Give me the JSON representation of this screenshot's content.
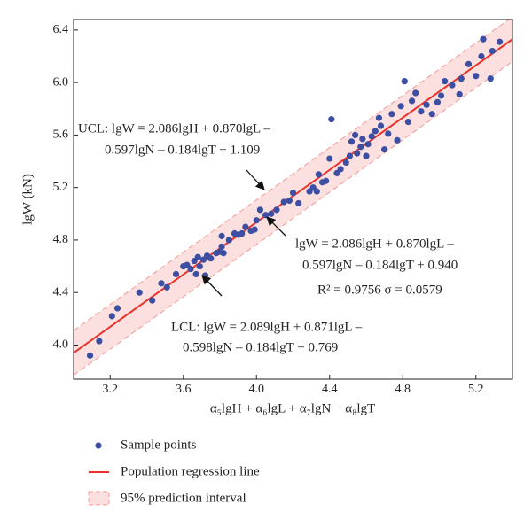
{
  "chart_data": {
    "type": "scatter",
    "x_label": "α₅lgH + α₆lgL + α₇lgN − α₈lgT",
    "y_label": "lgW (kN)",
    "xlim": [
      3.0,
      5.4
    ],
    "ylim": [
      3.74,
      6.48
    ],
    "xticks": [
      3.2,
      3.6,
      {
        "value": 4,
        "label": "4.0"
      },
      4.4,
      4.8,
      5.2
    ],
    "yticks": [
      {
        "value": 4,
        "label": "4.0"
      },
      4.4,
      4.8,
      5.2,
      5.6,
      {
        "value": 6,
        "label": "6.0"
      },
      6.4
    ],
    "series": [
      {
        "name": "95% prediction interval",
        "type": "band",
        "color": "#e8312a",
        "x": [
          3.0,
          5.4
        ],
        "upper": [
          4.11,
          6.5
        ],
        "lower": [
          3.77,
          6.16
        ]
      },
      {
        "name": "Population regression line",
        "type": "line",
        "color": "#e8312a",
        "x": [
          3.0,
          5.4
        ],
        "values": [
          3.94,
          6.33
        ]
      },
      {
        "name": "Sample points",
        "type": "scatter",
        "color": "#3c4fa3",
        "x": [
          3.09,
          3.14,
          3.21,
          3.24,
          3.36,
          3.43,
          3.48,
          3.51,
          3.56,
          3.6,
          3.62,
          3.64,
          3.66,
          3.67,
          3.68,
          3.69,
          3.71,
          3.72,
          3.73,
          3.75,
          3.78,
          3.8,
          3.81,
          3.82,
          3.81,
          3.85,
          3.88,
          3.9,
          3.92,
          3.94,
          3.97,
          3.99,
          4.0,
          4.02,
          4.05,
          4.08,
          4.11,
          4.15,
          4.18,
          4.2,
          4.23,
          4.29,
          4.31,
          4.33,
          4.34,
          4.36,
          4.38,
          4.4,
          4.41,
          4.44,
          4.46,
          4.49,
          4.51,
          4.52,
          4.54,
          4.55,
          4.57,
          4.58,
          4.6,
          4.61,
          4.63,
          4.65,
          4.67,
          4.68,
          4.7,
          4.72,
          4.74,
          4.77,
          4.79,
          4.81,
          4.83,
          4.85,
          4.87,
          4.9,
          4.93,
          4.96,
          4.99,
          5.01,
          5.03,
          5.07,
          5.11,
          5.12,
          5.16,
          5.2,
          5.23,
          5.24,
          5.28,
          5.29,
          5.33
        ],
        "values": [
          3.92,
          4.03,
          4.22,
          4.28,
          4.4,
          4.34,
          4.47,
          4.44,
          4.54,
          4.6,
          4.61,
          4.58,
          4.64,
          4.54,
          4.67,
          4.6,
          4.65,
          4.53,
          4.68,
          4.66,
          4.7,
          4.71,
          4.75,
          4.7,
          4.83,
          4.8,
          4.85,
          4.84,
          4.85,
          4.9,
          4.87,
          4.88,
          4.95,
          5.03,
          4.99,
          5.0,
          5.03,
          5.09,
          5.1,
          5.16,
          5.08,
          5.17,
          5.2,
          5.17,
          5.3,
          5.24,
          5.25,
          5.42,
          5.72,
          5.31,
          5.34,
          5.39,
          5.44,
          5.55,
          5.6,
          5.46,
          5.51,
          5.57,
          5.44,
          5.53,
          5.59,
          5.63,
          5.73,
          5.67,
          5.49,
          5.61,
          5.76,
          5.56,
          5.82,
          6.01,
          5.7,
          5.86,
          5.92,
          5.78,
          5.83,
          5.76,
          5.85,
          5.9,
          6.01,
          5.98,
          5.91,
          6.03,
          6.14,
          6.05,
          6.2,
          6.33,
          6.03,
          6.24,
          6.31
        ]
      }
    ],
    "annotations": [
      {
        "lines": [
          "UCL: lgW = 2.086lgH + 0.870lgL –",
          "0.597lgN – 0.184lgT + 1.109"
        ]
      },
      {
        "lines": [
          "lgW = 2.086lgH + 0.870lgL –",
          "0.597lgN – 0.184lgT + 0.940",
          "R² = 0.9756 σ = 0.0579"
        ]
      },
      {
        "lines": [
          "LCL: lgW = 2.089lgH + 0.871lgL –",
          "0.598lgN – 0.184lgT + 0.769"
        ]
      }
    ]
  }
}
